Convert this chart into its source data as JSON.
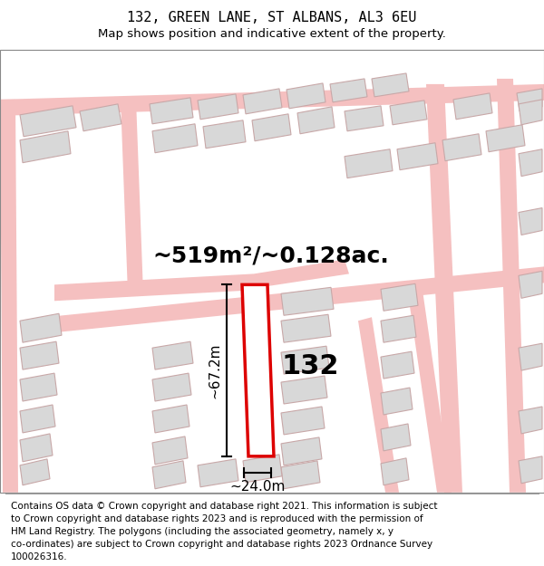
{
  "title": "132, GREEN LANE, ST ALBANS, AL3 6EU",
  "subtitle": "Map shows position and indicative extent of the property.",
  "footer": "Contains OS data © Crown copyright and database right 2021. This information is subject\nto Crown copyright and database rights 2023 and is reproduced with the permission of\nHM Land Registry. The polygons (including the associated geometry, namely x, y\nco-ordinates) are subject to Crown copyright and database rights 2023 Ordnance Survey\n100026316.",
  "area_label": "~519m²/~0.128ac.",
  "number_label": "132",
  "dim_height": "~67.2m",
  "dim_width": "~24.0m",
  "bg_color": "#ffffff",
  "road_color": "#f5c0c0",
  "building_color": "#d8d8d8",
  "building_edge": "#c8a8a8",
  "red_color": "#dd0000",
  "title_fontsize": 11,
  "subtitle_fontsize": 9.5,
  "footer_fontsize": 7.5
}
